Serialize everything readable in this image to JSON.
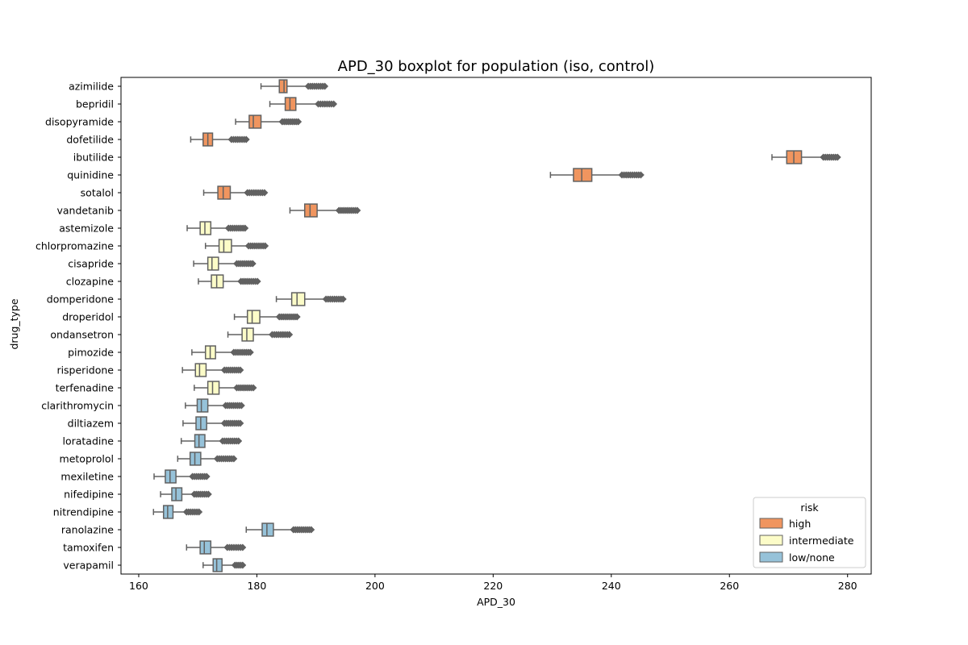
{
  "chart_data": {
    "type": "boxplot",
    "orientation": "horizontal",
    "title": "APD_30 boxplot for population (iso, control)",
    "xlabel": "APD_30",
    "ylabel": "drug_type",
    "xlim": [
      157,
      284
    ],
    "xticks": [
      160,
      180,
      200,
      220,
      240,
      260,
      280
    ],
    "legend": {
      "title": "risk",
      "placement": "lower-right",
      "entries": [
        {
          "key": "high",
          "label": "high",
          "color": "#f0955f"
        },
        {
          "key": "intermediate",
          "label": "intermediate",
          "color": "#fcfcc8"
        },
        {
          "key": "low",
          "label": "low/none",
          "color": "#96c2d9"
        }
      ]
    },
    "box_edge_color": "#616161",
    "boxes": [
      {
        "drug": "azimilide",
        "risk": "high",
        "whisker_low": 180.7,
        "q1": 183.8,
        "median": 184.6,
        "q3": 185.1,
        "whisker_high": 188.6,
        "outlier_max": 191.5
      },
      {
        "drug": "bepridil",
        "risk": "high",
        "whisker_low": 182.2,
        "q1": 184.8,
        "median": 185.6,
        "q3": 186.6,
        "whisker_high": 190.3,
        "outlier_max": 193.0
      },
      {
        "drug": "disopyramide",
        "risk": "high",
        "whisker_low": 176.4,
        "q1": 178.7,
        "median": 179.4,
        "q3": 180.7,
        "whisker_high": 184.2,
        "outlier_max": 187.0
      },
      {
        "drug": "dofetilide",
        "risk": "high",
        "whisker_low": 168.8,
        "q1": 170.9,
        "median": 171.7,
        "q3": 172.5,
        "whisker_high": 175.6,
        "outlier_max": 178.2
      },
      {
        "drug": "ibutilide",
        "risk": "high",
        "whisker_low": 267.2,
        "q1": 269.7,
        "median": 270.9,
        "q3": 272.2,
        "whisker_high": 275.8,
        "outlier_max": 278.3
      },
      {
        "drug": "quinidine",
        "risk": "high",
        "whisker_low": 229.7,
        "q1": 233.6,
        "median": 235.0,
        "q3": 236.7,
        "whisker_high": 241.7,
        "outlier_max": 245.0
      },
      {
        "drug": "sotalol",
        "risk": "high",
        "whisker_low": 171.0,
        "q1": 173.4,
        "median": 174.3,
        "q3": 175.5,
        "whisker_high": 178.3,
        "outlier_max": 181.3
      },
      {
        "drug": "vandetanib",
        "risk": "high",
        "whisker_low": 185.6,
        "q1": 188.1,
        "median": 189.0,
        "q3": 190.2,
        "whisker_high": 193.8,
        "outlier_max": 197.0
      },
      {
        "drug": "astemizole",
        "risk": "intermediate",
        "whisker_low": 168.2,
        "q1": 170.4,
        "median": 171.2,
        "q3": 172.2,
        "whisker_high": 175.1,
        "outlier_max": 178.0
      },
      {
        "drug": "chlorpromazine",
        "risk": "intermediate",
        "whisker_low": 171.3,
        "q1": 173.6,
        "median": 174.4,
        "q3": 175.7,
        "whisker_high": 178.5,
        "outlier_max": 181.4
      },
      {
        "drug": "cisapride",
        "risk": "intermediate",
        "whisker_low": 169.3,
        "q1": 171.7,
        "median": 172.4,
        "q3": 173.5,
        "whisker_high": 176.5,
        "outlier_max": 179.3
      },
      {
        "drug": "clozapine",
        "risk": "intermediate",
        "whisker_low": 170.1,
        "q1": 172.3,
        "median": 173.2,
        "q3": 174.3,
        "whisker_high": 177.2,
        "outlier_max": 180.1
      },
      {
        "drug": "domperidone",
        "risk": "intermediate",
        "whisker_low": 183.3,
        "q1": 185.9,
        "median": 186.8,
        "q3": 188.1,
        "whisker_high": 191.6,
        "outlier_max": 194.6
      },
      {
        "drug": "droperidol",
        "risk": "intermediate",
        "whisker_low": 176.2,
        "q1": 178.4,
        "median": 179.2,
        "q3": 180.5,
        "whisker_high": 183.7,
        "outlier_max": 186.8
      },
      {
        "drug": "ondansetron",
        "risk": "intermediate",
        "whisker_low": 175.1,
        "q1": 177.5,
        "median": 178.3,
        "q3": 179.4,
        "whisker_high": 182.5,
        "outlier_max": 185.5
      },
      {
        "drug": "pimozide",
        "risk": "intermediate",
        "whisker_low": 169.0,
        "q1": 171.3,
        "median": 172.1,
        "q3": 173.0,
        "whisker_high": 176.0,
        "outlier_max": 178.9
      },
      {
        "drug": "risperidone",
        "risk": "intermediate",
        "whisker_low": 167.4,
        "q1": 169.6,
        "median": 170.3,
        "q3": 171.4,
        "whisker_high": 174.4,
        "outlier_max": 177.2
      },
      {
        "drug": "terfenadine",
        "risk": "intermediate",
        "whisker_low": 169.4,
        "q1": 171.7,
        "median": 172.5,
        "q3": 173.6,
        "whisker_high": 176.5,
        "outlier_max": 179.4
      },
      {
        "drug": "clarithromycin",
        "risk": "low",
        "whisker_low": 167.9,
        "q1": 169.9,
        "median": 170.6,
        "q3": 171.7,
        "whisker_high": 174.6,
        "outlier_max": 177.4
      },
      {
        "drug": "diltiazem",
        "risk": "low",
        "whisker_low": 167.5,
        "q1": 169.7,
        "median": 170.5,
        "q3": 171.5,
        "whisker_high": 174.4,
        "outlier_max": 177.2
      },
      {
        "drug": "loratadine",
        "risk": "low",
        "whisker_low": 167.2,
        "q1": 169.5,
        "median": 170.2,
        "q3": 171.2,
        "whisker_high": 174.1,
        "outlier_max": 176.9
      },
      {
        "drug": "metoprolol",
        "risk": "low",
        "whisker_low": 166.6,
        "q1": 168.7,
        "median": 169.5,
        "q3": 170.5,
        "whisker_high": 173.2,
        "outlier_max": 176.1
      },
      {
        "drug": "mexiletine",
        "risk": "low",
        "whisker_low": 162.6,
        "q1": 164.5,
        "median": 165.3,
        "q3": 166.3,
        "whisker_high": 169.0,
        "outlier_max": 171.5
      },
      {
        "drug": "nifedipine",
        "risk": "low",
        "whisker_low": 163.7,
        "q1": 165.6,
        "median": 166.3,
        "q3": 167.3,
        "whisker_high": 169.3,
        "outlier_max": 171.8
      },
      {
        "drug": "nitrendipine",
        "risk": "low",
        "whisker_low": 162.5,
        "q1": 164.2,
        "median": 164.9,
        "q3": 165.8,
        "whisker_high": 168.0,
        "outlier_max": 170.2
      },
      {
        "drug": "ranolazine",
        "risk": "low",
        "whisker_low": 178.2,
        "q1": 180.9,
        "median": 181.7,
        "q3": 182.8,
        "whisker_high": 186.1,
        "outlier_max": 189.2
      },
      {
        "drug": "tamoxifen",
        "risk": "low",
        "whisker_low": 168.1,
        "q1": 170.4,
        "median": 171.1,
        "q3": 172.2,
        "whisker_high": 174.9,
        "outlier_max": 177.6
      },
      {
        "drug": "verapamil",
        "risk": "low",
        "whisker_low": 170.9,
        "q1": 172.6,
        "median": 173.2,
        "q3": 174.1,
        "whisker_high": 176.2,
        "outlier_max": 177.6
      }
    ]
  }
}
